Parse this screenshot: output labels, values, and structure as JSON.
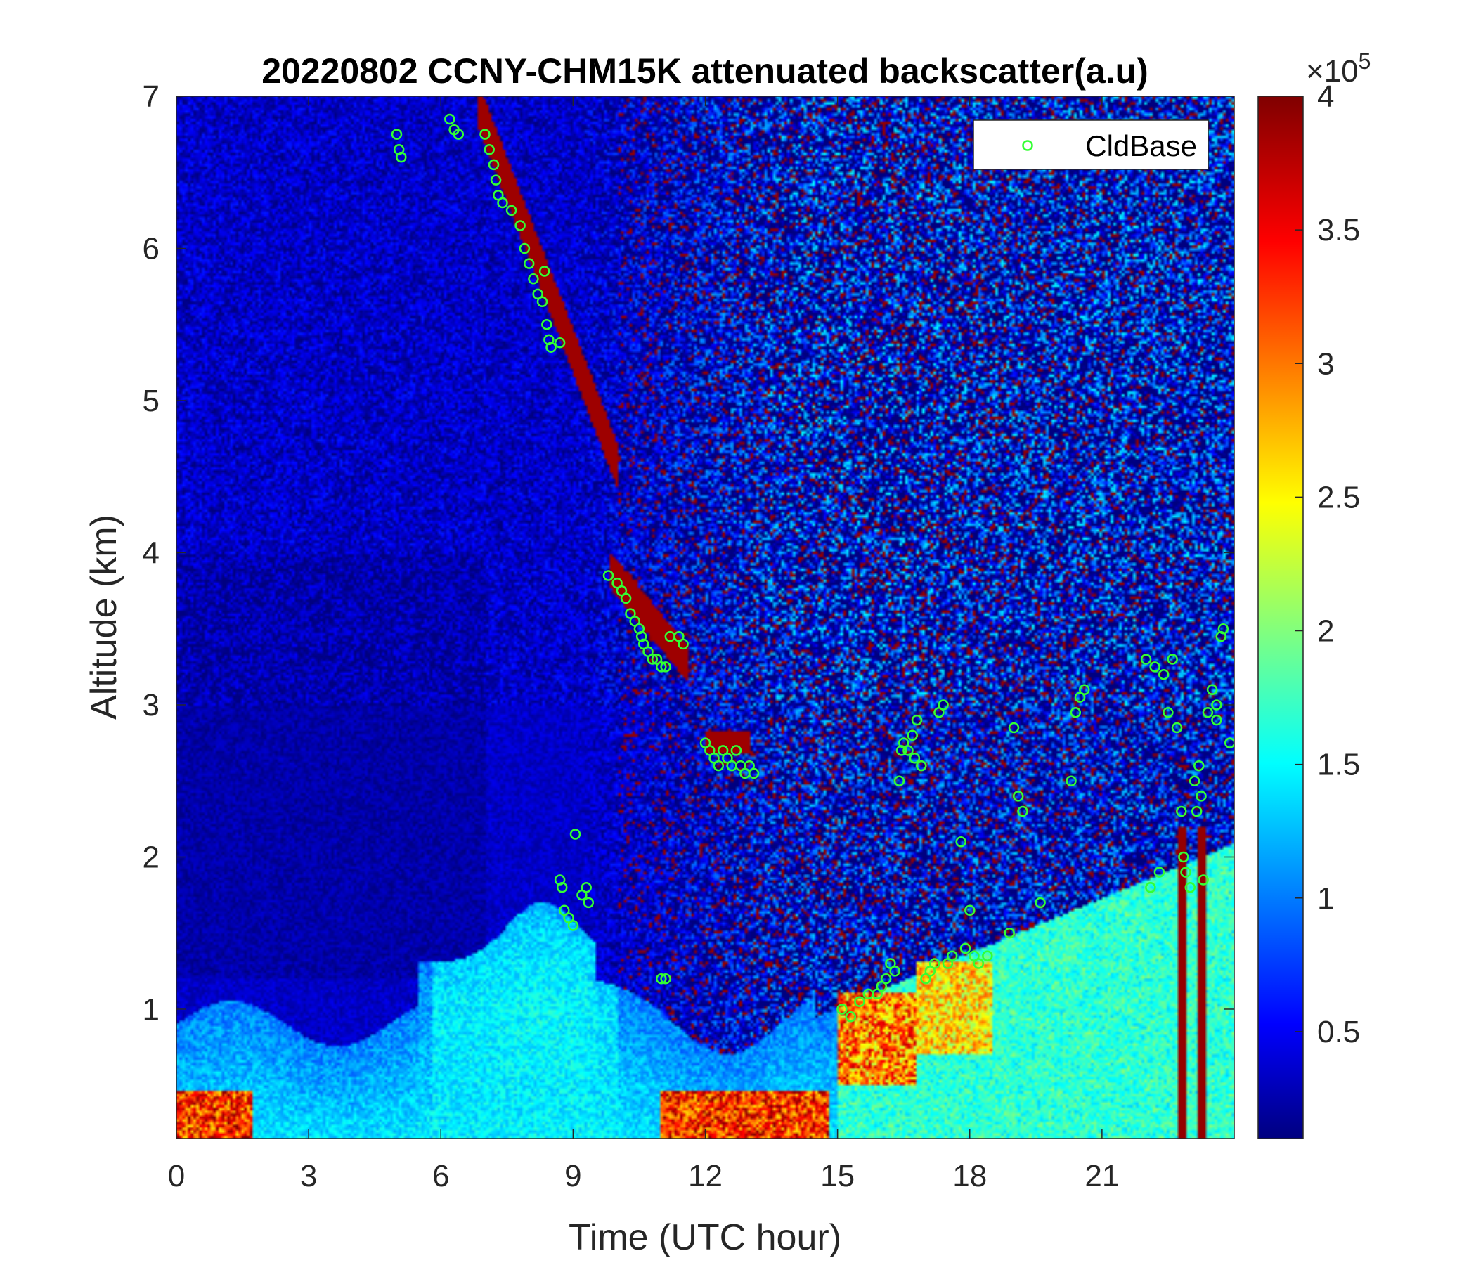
{
  "chart_data": {
    "type": "heatmap",
    "title": "20220802 CCNY-CHM15K attenuated backscatter(a.u)",
    "xlabel": "Time (UTC hour)",
    "ylabel": "Altitude (km)",
    "xlim": [
      0,
      24
    ],
    "ylim": [
      0.15,
      7
    ],
    "x_ticks": [
      0,
      3,
      6,
      9,
      12,
      15,
      18,
      21
    ],
    "x_tick_labels": [
      "0",
      "3",
      "6",
      "9",
      "12",
      "15",
      "18",
      "21"
    ],
    "y_ticks": [
      1,
      2,
      3,
      4,
      5,
      6,
      7
    ],
    "y_tick_labels": [
      "1",
      "2",
      "3",
      "4",
      "5",
      "6",
      "7"
    ],
    "colorbar": {
      "colormap": "jet",
      "clim": [
        0.1,
        4
      ],
      "ticks": [
        0.5,
        1,
        1.5,
        2,
        2.5,
        3,
        3.5,
        4
      ],
      "tick_labels": [
        "0.5",
        "1",
        "1.5",
        "2",
        "2.5",
        "3",
        "3.5",
        "4"
      ],
      "exponent_label": "×10",
      "exponent_power": "5"
    },
    "legend": {
      "placement": "top-right",
      "entries": [
        "CldBase"
      ]
    },
    "series": [
      {
        "name": "CldBase",
        "marker": "circle-open",
        "color": "#33ff33",
        "points": [
          [
            5.0,
            6.75
          ],
          [
            5.05,
            6.65
          ],
          [
            5.1,
            6.6
          ],
          [
            6.2,
            6.85
          ],
          [
            6.3,
            6.78
          ],
          [
            6.4,
            6.75
          ],
          [
            7.0,
            6.75
          ],
          [
            7.1,
            6.65
          ],
          [
            7.2,
            6.55
          ],
          [
            7.25,
            6.45
          ],
          [
            7.3,
            6.35
          ],
          [
            7.4,
            6.3
          ],
          [
            7.6,
            6.25
          ],
          [
            7.8,
            6.15
          ],
          [
            7.9,
            6.0
          ],
          [
            8.0,
            5.9
          ],
          [
            8.1,
            5.8
          ],
          [
            8.2,
            5.7
          ],
          [
            8.3,
            5.65
          ],
          [
            8.35,
            5.85
          ],
          [
            8.4,
            5.5
          ],
          [
            8.45,
            5.4
          ],
          [
            8.5,
            5.35
          ],
          [
            8.7,
            5.38
          ],
          [
            9.8,
            3.85
          ],
          [
            10.0,
            3.8
          ],
          [
            10.1,
            3.75
          ],
          [
            10.2,
            3.7
          ],
          [
            10.3,
            3.6
          ],
          [
            10.4,
            3.55
          ],
          [
            10.5,
            3.5
          ],
          [
            10.55,
            3.45
          ],
          [
            10.6,
            3.4
          ],
          [
            10.7,
            3.35
          ],
          [
            10.8,
            3.3
          ],
          [
            10.9,
            3.3
          ],
          [
            11.0,
            3.25
          ],
          [
            11.1,
            3.25
          ],
          [
            11.2,
            3.45
          ],
          [
            11.4,
            3.45
          ],
          [
            11.5,
            3.4
          ],
          [
            12.0,
            2.75
          ],
          [
            12.1,
            2.7
          ],
          [
            12.2,
            2.65
          ],
          [
            12.3,
            2.6
          ],
          [
            12.4,
            2.7
          ],
          [
            12.5,
            2.65
          ],
          [
            12.6,
            2.6
          ],
          [
            12.7,
            2.7
          ],
          [
            12.8,
            2.6
          ],
          [
            12.9,
            2.55
          ],
          [
            13.0,
            2.6
          ],
          [
            13.1,
            2.55
          ],
          [
            8.7,
            1.85
          ],
          [
            8.75,
            1.8
          ],
          [
            8.8,
            1.65
          ],
          [
            8.9,
            1.6
          ],
          [
            9.0,
            1.55
          ],
          [
            9.05,
            2.15
          ],
          [
            9.2,
            1.75
          ],
          [
            9.3,
            1.8
          ],
          [
            9.35,
            1.7
          ],
          [
            11.0,
            1.2
          ],
          [
            11.1,
            1.2
          ],
          [
            15.1,
            1.0
          ],
          [
            15.3,
            0.95
          ],
          [
            15.5,
            1.05
          ],
          [
            15.7,
            1.1
          ],
          [
            15.9,
            1.1
          ],
          [
            16.0,
            1.15
          ],
          [
            16.1,
            1.2
          ],
          [
            16.2,
            1.3
          ],
          [
            16.3,
            1.25
          ],
          [
            16.4,
            2.5
          ],
          [
            16.45,
            2.7
          ],
          [
            16.5,
            2.75
          ],
          [
            16.6,
            2.7
          ],
          [
            16.7,
            2.8
          ],
          [
            16.75,
            2.65
          ],
          [
            16.8,
            2.9
          ],
          [
            16.9,
            2.6
          ],
          [
            17.0,
            1.2
          ],
          [
            17.1,
            1.25
          ],
          [
            17.2,
            1.3
          ],
          [
            17.3,
            2.95
          ],
          [
            17.4,
            3.0
          ],
          [
            17.5,
            1.3
          ],
          [
            17.6,
            1.35
          ],
          [
            17.8,
            2.1
          ],
          [
            17.9,
            1.4
          ],
          [
            18.0,
            1.65
          ],
          [
            18.1,
            1.35
          ],
          [
            18.2,
            1.3
          ],
          [
            18.4,
            1.35
          ],
          [
            18.9,
            1.5
          ],
          [
            19.0,
            2.85
          ],
          [
            19.1,
            2.4
          ],
          [
            19.2,
            2.3
          ],
          [
            19.6,
            1.7
          ],
          [
            20.3,
            2.5
          ],
          [
            20.4,
            2.95
          ],
          [
            20.5,
            3.05
          ],
          [
            20.6,
            3.1
          ],
          [
            22.0,
            3.3
          ],
          [
            22.1,
            1.8
          ],
          [
            22.2,
            3.25
          ],
          [
            22.3,
            1.9
          ],
          [
            22.4,
            3.2
          ],
          [
            22.5,
            2.95
          ],
          [
            22.6,
            3.3
          ],
          [
            22.7,
            2.85
          ],
          [
            22.8,
            2.3
          ],
          [
            22.85,
            2.0
          ],
          [
            22.9,
            1.9
          ],
          [
            23.0,
            1.8
          ],
          [
            23.1,
            2.5
          ],
          [
            23.15,
            2.3
          ],
          [
            23.2,
            2.6
          ],
          [
            23.25,
            2.4
          ],
          [
            23.3,
            1.85
          ],
          [
            23.4,
            2.95
          ],
          [
            23.5,
            3.1
          ],
          [
            23.6,
            3.0
          ],
          [
            23.7,
            3.45
          ],
          [
            23.75,
            3.5
          ],
          [
            23.9,
            2.75
          ],
          [
            23.6,
            2.9
          ]
        ]
      }
    ]
  }
}
